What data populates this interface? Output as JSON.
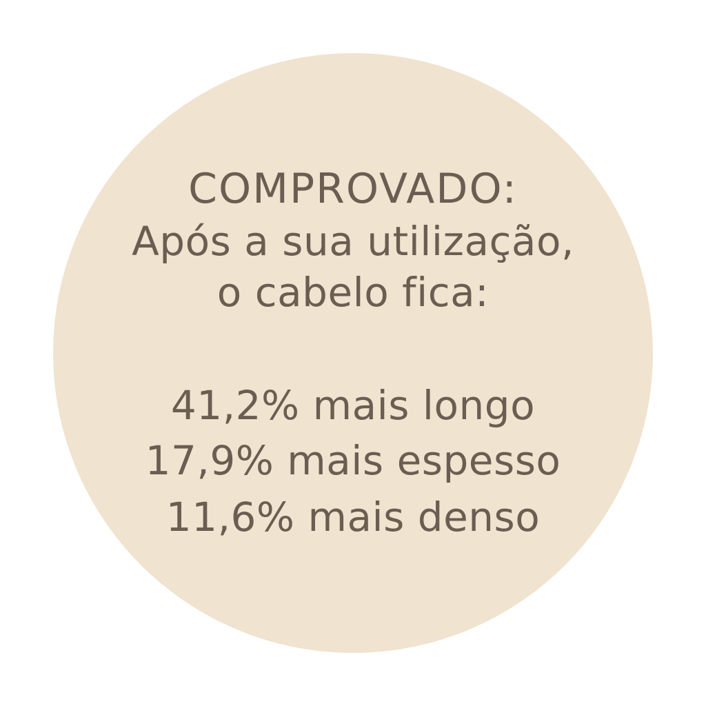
{
  "colors": {
    "background": "#ffffff",
    "circle": "#F0E3CF",
    "text": "#6B5D51"
  },
  "heading": "COMPROVADO:",
  "intro": [
    "Após a sua utilização,",
    "o cabelo fica:"
  ],
  "results": [
    "41,2% mais longo",
    "17,9% mais espesso",
    "11,6% mais denso"
  ]
}
